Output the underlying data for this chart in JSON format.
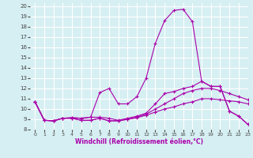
{
  "xlabel": "Windchill (Refroidissement éolien,°C)",
  "xlim": [
    -0.5,
    23
  ],
  "ylim": [
    8,
    20.3
  ],
  "xticks": [
    0,
    1,
    2,
    3,
    4,
    5,
    6,
    7,
    8,
    9,
    10,
    11,
    12,
    13,
    14,
    15,
    16,
    17,
    18,
    19,
    20,
    21,
    22,
    23
  ],
  "yticks": [
    8,
    9,
    10,
    11,
    12,
    13,
    14,
    15,
    16,
    17,
    18,
    19,
    20
  ],
  "bg_color": "#d6eff2",
  "grid_color": "#ffffff",
  "line_color": "#aa00aa",
  "series": [
    [
      10.7,
      8.9,
      8.85,
      9.1,
      9.1,
      8.9,
      8.9,
      9.1,
      8.85,
      8.85,
      9.0,
      9.15,
      9.4,
      9.7,
      10.0,
      10.2,
      10.5,
      10.7,
      11.0,
      11.0,
      10.9,
      10.8,
      10.7,
      10.5
    ],
    [
      10.7,
      8.9,
      8.85,
      9.1,
      9.1,
      8.9,
      8.9,
      9.1,
      8.85,
      8.85,
      9.0,
      9.2,
      9.5,
      10.0,
      10.5,
      11.0,
      11.5,
      11.8,
      12.0,
      12.0,
      11.8,
      11.5,
      11.2,
      10.9
    ],
    [
      10.7,
      8.9,
      8.85,
      9.1,
      9.15,
      9.1,
      9.2,
      9.2,
      9.1,
      8.9,
      9.1,
      9.3,
      9.6,
      10.5,
      11.5,
      11.7,
      12.0,
      12.2,
      12.7,
      12.2,
      12.2,
      9.8,
      9.3,
      8.5
    ],
    [
      10.7,
      8.9,
      8.85,
      9.1,
      9.15,
      9.1,
      9.2,
      11.6,
      12.0,
      10.5,
      10.5,
      11.2,
      13.0,
      16.4,
      18.6,
      19.6,
      19.7,
      18.5,
      12.7,
      12.2,
      12.2,
      9.8,
      9.3,
      8.5
    ]
  ]
}
